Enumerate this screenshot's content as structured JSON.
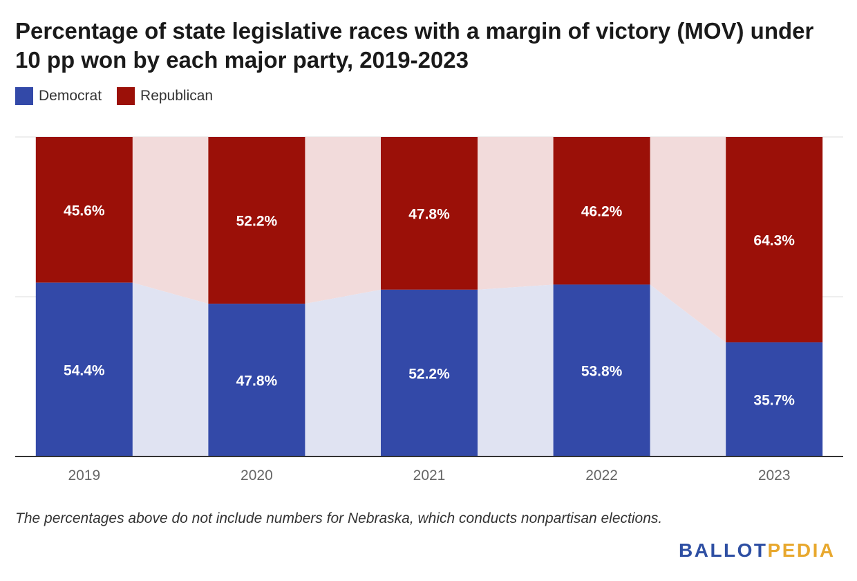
{
  "title": "Percentage of state legislative races with a margin of victory (MOV) under 10 pp won by each major party, 2019-2023",
  "legend": [
    {
      "label": "Democrat",
      "color": "#3349a8"
    },
    {
      "label": "Republican",
      "color": "#9b1008"
    }
  ],
  "footnote": "The percentages above do not include numbers for Nebraska, which conducts nonpartisan elections.",
  "logo": {
    "part1": "BALLOT",
    "part2": "PEDIA"
  },
  "colors": {
    "democrat": "#3349a8",
    "republican": "#9b1008",
    "democrat_band": "#e0e3f2",
    "republican_band": "#f2dbdb",
    "grid": "#dddddd",
    "axis": "#333333"
  },
  "chart_data": {
    "type": "bar",
    "stacked": true,
    "normalized": true,
    "categories": [
      "2019",
      "2020",
      "2021",
      "2022",
      "2023"
    ],
    "series": [
      {
        "name": "Democrat",
        "values": [
          54.4,
          47.8,
          52.2,
          53.8,
          35.7
        ],
        "labels": [
          "54.4%",
          "47.8%",
          "52.2%",
          "53.8%",
          "35.7%"
        ]
      },
      {
        "name": "Republican",
        "values": [
          45.6,
          52.2,
          47.8,
          46.2,
          64.3
        ],
        "labels": [
          "45.6%",
          "52.2%",
          "47.8%",
          "46.2%",
          "64.3%"
        ]
      }
    ],
    "ylim": [
      0,
      100
    ],
    "grid": true,
    "legend_position": "top-left"
  }
}
